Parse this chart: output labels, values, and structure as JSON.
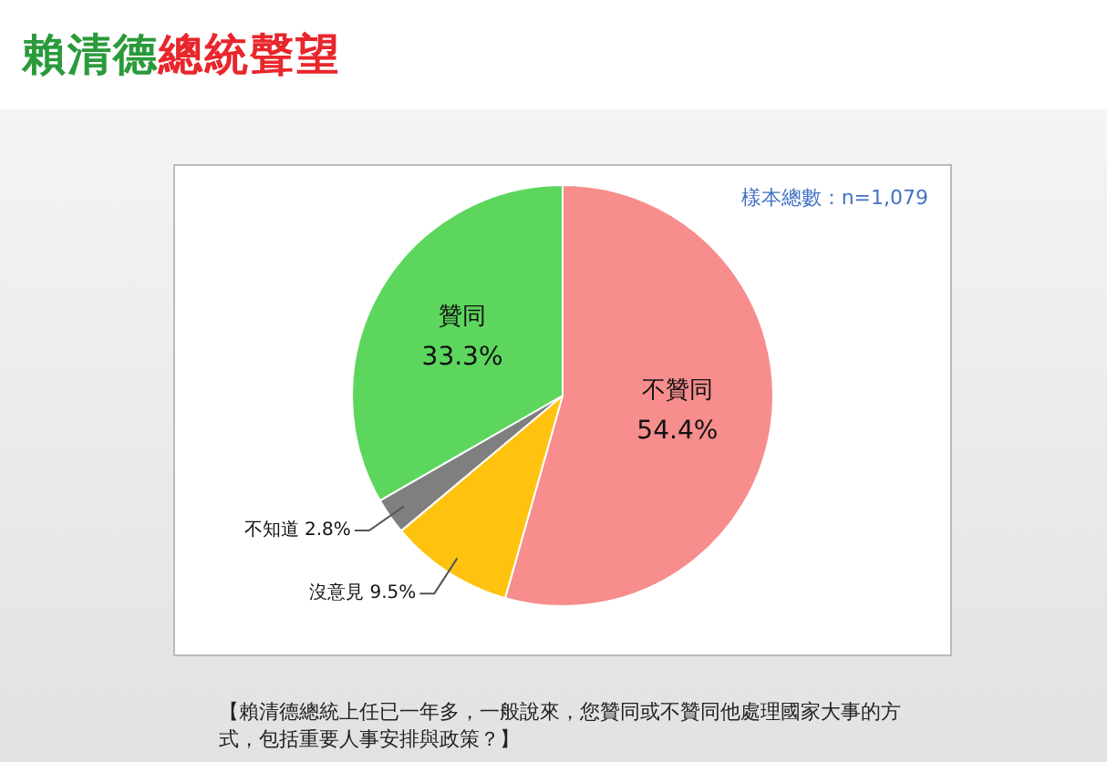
{
  "chart_data": {
    "type": "pie",
    "title": "賴清德總統聲望",
    "categories": [
      "不贊同",
      "沒意見",
      "不知道",
      "贊同"
    ],
    "values": [
      54.4,
      9.5,
      2.8,
      33.3
    ],
    "colors": [
      "#f78d8d",
      "#ffc20e",
      "#7f7f7f",
      "#5cd65c"
    ],
    "data_labels": true,
    "value_labels": [
      "54.4%",
      "9.5%",
      "2.8%",
      "33.3%"
    ],
    "legend": false,
    "annotations": [
      "樣本總數：n=1,079",
      "【賴清德總統上任已一年多，一般說來，您贊同或不贊同他處理國家大事的方式，包括重要人事安排與政策？】"
    ]
  }
}
